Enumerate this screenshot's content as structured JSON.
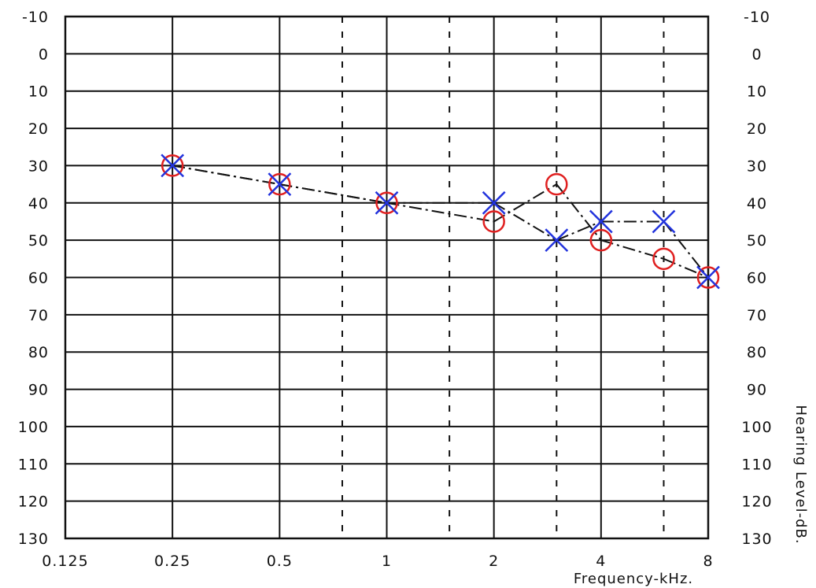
{
  "chart_data": {
    "type": "line",
    "title": "",
    "xlabel": "Frequency-kHz.",
    "ylabel": "Hearing Level-dB.",
    "x_scale": "log2",
    "x_ticks": [
      0.125,
      0.25,
      0.5,
      1,
      2,
      4,
      8
    ],
    "x_tick_labels": [
      "0.125",
      "0.25",
      "0.5",
      "1",
      "2",
      "4",
      "8"
    ],
    "x_minor_ticks": [
      0.75,
      1.5,
      3,
      6
    ],
    "y_ticks": [
      -10,
      0,
      10,
      20,
      30,
      40,
      50,
      60,
      70,
      80,
      90,
      100,
      110,
      120,
      130
    ],
    "y_tick_labels": [
      "-10",
      "0",
      "10",
      "20",
      "30",
      "40",
      "50",
      "60",
      "70",
      "80",
      "90",
      "100",
      "110",
      "120",
      "130"
    ],
    "ylim": [
      -10,
      130
    ],
    "y_inverted": true,
    "xlim": [
      0.125,
      8
    ],
    "grid": true,
    "series": [
      {
        "marker": "circle",
        "color": "#e02020",
        "line_color": "#111111",
        "x": [
          0.25,
          0.5,
          1,
          2,
          3,
          4,
          6,
          8
        ],
        "values": [
          30,
          35,
          40,
          45,
          35,
          50,
          55,
          60
        ]
      },
      {
        "marker": "cross",
        "color": "#2233dd",
        "line_color": "#111111",
        "x": [
          0.25,
          0.5,
          1,
          2,
          3,
          4,
          6,
          8
        ],
        "values": [
          30,
          35,
          40,
          40,
          50,
          45,
          45,
          60
        ]
      }
    ]
  }
}
